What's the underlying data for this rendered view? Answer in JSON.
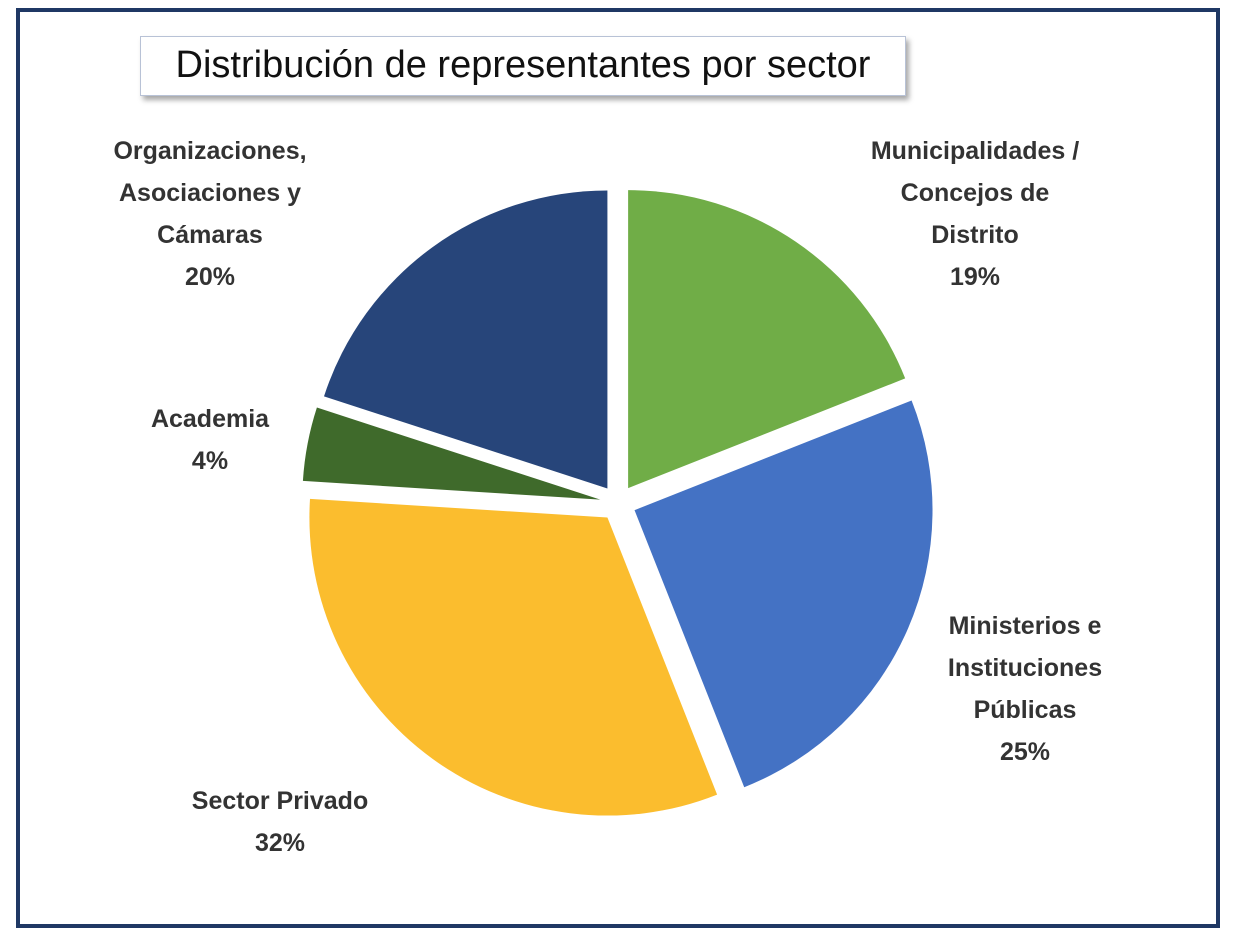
{
  "chart_data": {
    "type": "pie",
    "title": "Distribución de representantes por sector",
    "categories": [
      "Municipalidades / Concejos de Distrito",
      "Ministerios e Instituciones Públicas",
      "Sector Privado",
      "Academia",
      "Organizaciones, Asociaciones y Cámaras"
    ],
    "values": [
      19,
      25,
      32,
      4,
      20
    ],
    "value_labels": [
      "19%",
      "25%",
      "32%",
      "4%",
      "20%"
    ],
    "colors": [
      "#70ad47",
      "#4472c4",
      "#fbbd2e",
      "#3f6a2b",
      "#27457a"
    ]
  }
}
